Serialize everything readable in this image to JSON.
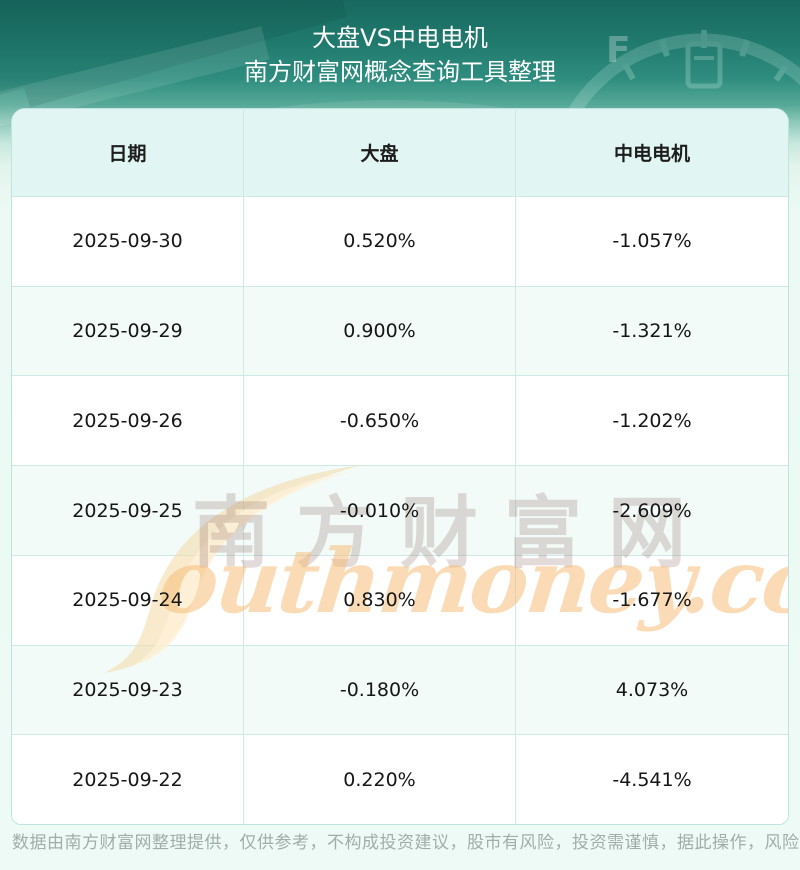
{
  "header": {
    "title": "大盘VS中电电机",
    "subtitle": "南方财富网概念查询工具整理"
  },
  "table": {
    "columns": [
      "日期",
      "大盘",
      "中电电机"
    ],
    "rows": [
      [
        "2025-09-30",
        "0.520%",
        "-1.057%"
      ],
      [
        "2025-09-29",
        "0.900%",
        "-1.321%"
      ],
      [
        "2025-09-26",
        "-0.650%",
        "-1.202%"
      ],
      [
        "2025-09-25",
        "-0.010%",
        "-2.609%"
      ],
      [
        "2025-09-24",
        "0.830%",
        "-1.677%"
      ],
      [
        "2025-09-23",
        "-0.180%",
        "4.073%"
      ],
      [
        "2025-09-22",
        "0.220%",
        "-4.541%"
      ]
    ]
  },
  "watermark": {
    "cn": "南方财富网",
    "en": "outhmoney.com"
  },
  "footer": {
    "disclaimer": "数据由南方财富网整理提供，仅供参考，不构成投资建议，股市有风险，投资需谨慎，据此操作，风险自担。"
  },
  "colors": {
    "header_teal_dark": "#18685e",
    "header_teal_mid": "#2e8d7f",
    "page_mint": "#edfaf5",
    "table_border": "#bfe3dd",
    "grid_line": "#cdeae4",
    "header_row_bg": "#e1f6f2",
    "alt_row_bg": "#f2fbf8",
    "watermark_orange": "#f6be78",
    "watermark_cream": "#f8dfb4",
    "watermark_pink_gray": "#cdb4b4",
    "footer_gray": "#a0aeab",
    "title_white": "#ffffff"
  },
  "chart_data": {
    "type": "table",
    "title": "大盘VS中电电机",
    "subtitle": "南方财富网概念查询工具整理",
    "categories": [
      "2025-09-30",
      "2025-09-29",
      "2025-09-26",
      "2025-09-25",
      "2025-09-24",
      "2025-09-23",
      "2025-09-22"
    ],
    "series": [
      {
        "name": "大盘",
        "values": [
          0.52,
          0.9,
          -0.65,
          -0.01,
          0.83,
          -0.18,
          0.22
        ],
        "unit": "%"
      },
      {
        "name": "中电电机",
        "values": [
          -1.057,
          -1.321,
          -1.202,
          -2.609,
          -1.677,
          4.073,
          -4.541
        ],
        "unit": "%"
      }
    ],
    "legend_position": "header-row",
    "grid": true
  }
}
